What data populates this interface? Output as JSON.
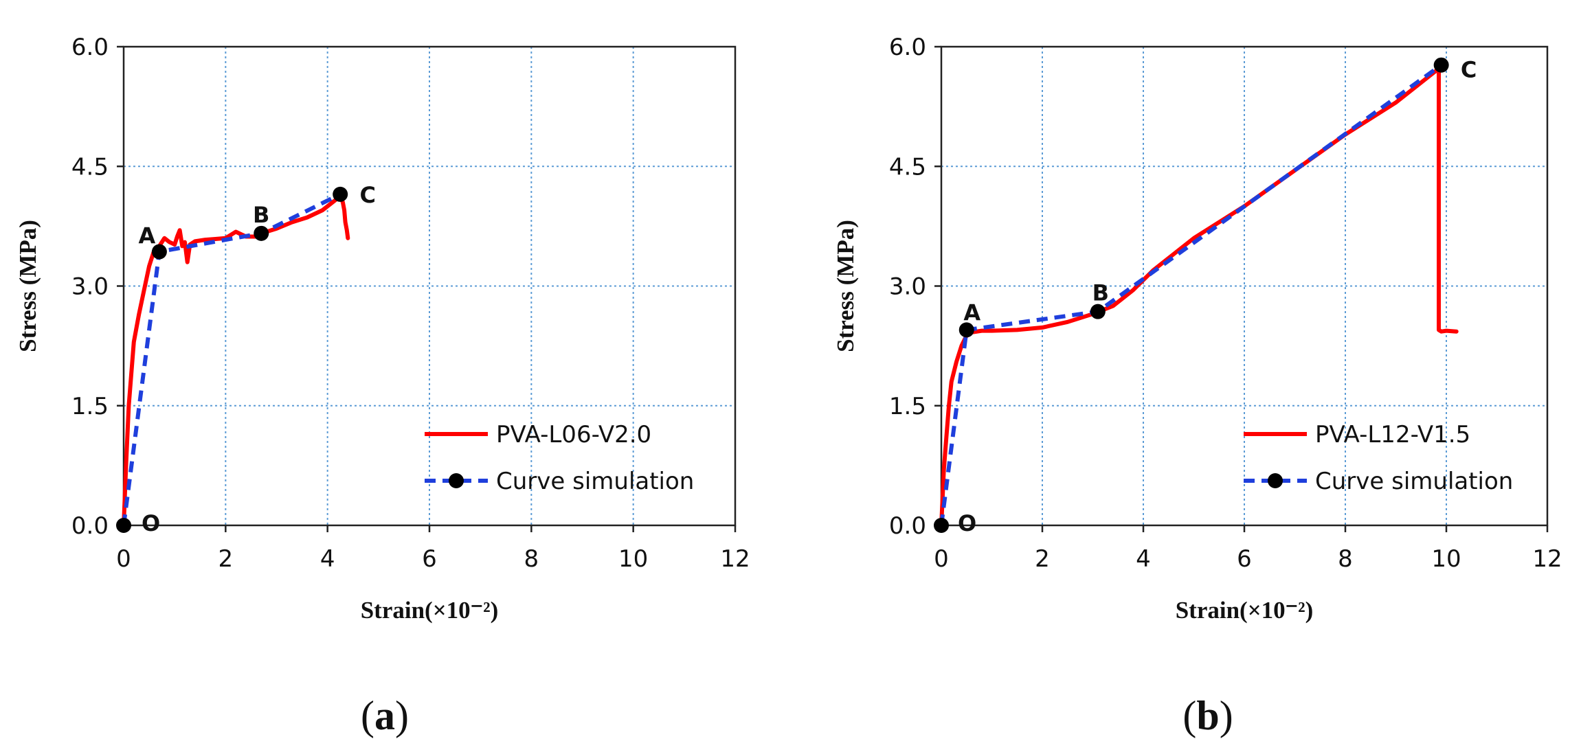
{
  "chart_data": [
    {
      "type": "line",
      "panel": "a",
      "caption_letter": "a",
      "xlabel": "Strain(×10⁻²)",
      "ylabel": "Stress (MPa)",
      "xlim": [
        0,
        12
      ],
      "ylim": [
        0,
        6
      ],
      "xticks": [
        "0",
        "2",
        "4",
        "6",
        "8",
        "10",
        "12"
      ],
      "yticks": [
        "0.0",
        "1.5",
        "3.0",
        "4.5",
        "6.0"
      ],
      "grid": true,
      "legend_position": "bottom-right",
      "series": [
        {
          "name": "PVA-L06-V2.0",
          "color": "#ff0000",
          "style": "solid",
          "x": [
            0,
            0.05,
            0.1,
            0.2,
            0.3,
            0.4,
            0.5,
            0.6,
            0.65,
            0.7,
            0.8,
            0.9,
            1.0,
            1.05,
            1.1,
            1.15,
            1.2,
            1.25,
            1.3,
            1.4,
            1.6,
            1.8,
            2.0,
            2.2,
            2.4,
            2.6,
            2.8,
            3.0,
            3.3,
            3.6,
            3.9,
            4.1,
            4.2,
            4.25,
            4.3,
            4.33,
            4.35,
            4.38,
            4.4
          ],
          "y": [
            0,
            0.8,
            1.5,
            2.3,
            2.65,
            2.95,
            3.25,
            3.45,
            3.48,
            3.5,
            3.6,
            3.55,
            3.52,
            3.62,
            3.7,
            3.5,
            3.55,
            3.3,
            3.52,
            3.56,
            3.58,
            3.59,
            3.6,
            3.68,
            3.62,
            3.62,
            3.68,
            3.72,
            3.8,
            3.86,
            3.95,
            4.05,
            4.1,
            4.12,
            4.05,
            3.95,
            3.8,
            3.7,
            3.6
          ]
        },
        {
          "name": "Curve simulation",
          "color": "#1f3fdc",
          "style": "dashed",
          "marker": "circle",
          "x": [
            0,
            0.7,
            2.7,
            4.25
          ],
          "y": [
            0,
            3.43,
            3.66,
            4.15
          ],
          "point_labels": [
            "O",
            "A",
            "B",
            "C"
          ]
        }
      ]
    },
    {
      "type": "line",
      "panel": "b",
      "caption_letter": "b",
      "xlabel": "Strain(×10⁻²)",
      "ylabel": "Stress (MPa)",
      "xlim": [
        0,
        12
      ],
      "ylim": [
        0,
        6
      ],
      "xticks": [
        "0",
        "2",
        "4",
        "6",
        "8",
        "10",
        "12"
      ],
      "yticks": [
        "0.0",
        "1.5",
        "3.0",
        "4.5",
        "6.0"
      ],
      "grid": true,
      "legend_position": "bottom-right",
      "series": [
        {
          "name": "PVA-L12-V1.5",
          "color": "#ff0000",
          "style": "solid",
          "x": [
            0,
            0.05,
            0.1,
            0.15,
            0.2,
            0.3,
            0.4,
            0.5,
            0.6,
            0.8,
            1.0,
            1.5,
            2.0,
            2.5,
            3.0,
            3.4,
            3.8,
            4.2,
            5.0,
            6.0,
            7.0,
            8.0,
            9.0,
            9.8,
            9.85,
            9.85,
            9.9,
            10.0,
            10.2
          ],
          "y": [
            0,
            0.7,
            1.1,
            1.5,
            1.8,
            2.05,
            2.25,
            2.38,
            2.42,
            2.44,
            2.44,
            2.45,
            2.48,
            2.55,
            2.65,
            2.75,
            2.95,
            3.2,
            3.6,
            4.0,
            4.45,
            4.9,
            5.3,
            5.7,
            5.77,
            2.45,
            2.43,
            2.44,
            2.43
          ]
        },
        {
          "name": "Curve simulation",
          "color": "#1f3fdc",
          "style": "dashed",
          "marker": "circle",
          "x": [
            0,
            0.5,
            3.1,
            9.9
          ],
          "y": [
            0,
            2.45,
            2.68,
            5.77
          ],
          "point_labels": [
            "O",
            "A",
            "B",
            "C"
          ]
        }
      ]
    }
  ]
}
